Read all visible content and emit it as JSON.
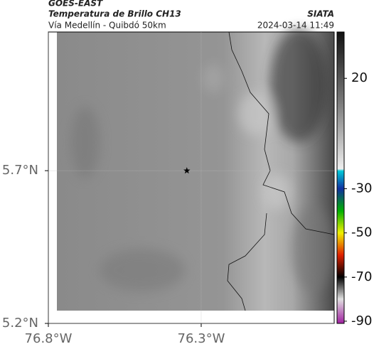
{
  "header": {
    "title": "GOES-EAST",
    "subtitle": "Temperatura de Brillo CH13",
    "source": "SIATA",
    "region": "Vía Medellín - Quibdó 50km",
    "datetime": "2024-03-14 11:49"
  },
  "map": {
    "lonlim": [
      -76.8,
      -75.865
    ],
    "latlim": [
      5.2,
      6.154
    ],
    "lonticks": [
      {
        "value": -76.8,
        "label": "76.8°W"
      },
      {
        "value": -76.3,
        "label": "76.3°W"
      }
    ],
    "latticks": [
      {
        "value": 5.2,
        "label": "5.2°N"
      },
      {
        "value": 5.7,
        "label": "5.7°N"
      }
    ],
    "marker": {
      "lon": -76.347,
      "lat": 5.7
    }
  },
  "colorbar": {
    "clim": [
      -91,
      41
    ],
    "stops": [
      {
        "value": 41,
        "color": "#111111"
      },
      {
        "value": 10,
        "color": "#777777"
      },
      {
        "value": -21,
        "color": "#eeeeee"
      },
      {
        "value": -22,
        "color": "#00c8d8"
      },
      {
        "value": -30,
        "color": "#1030a0"
      },
      {
        "value": -40,
        "color": "#00b000"
      },
      {
        "value": -50,
        "color": "#f0f000"
      },
      {
        "value": -60,
        "color": "#e02000"
      },
      {
        "value": -70,
        "color": "#000000"
      },
      {
        "value": -80,
        "color": "#e0e0e0"
      },
      {
        "value": -91,
        "color": "#a020a0"
      }
    ],
    "ticks": [
      20,
      -30,
      -50,
      -70,
      -90
    ]
  }
}
